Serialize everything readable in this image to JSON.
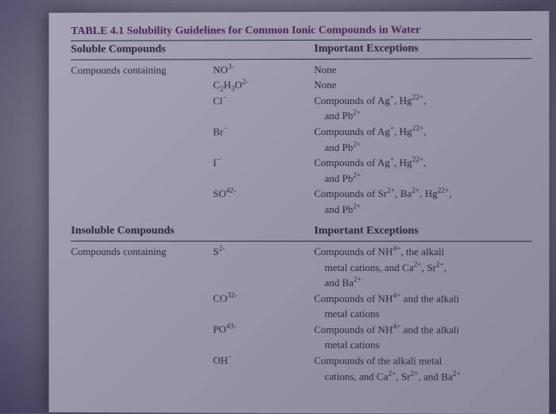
{
  "title": "TABLE 4.1  Solubility Guidelines for Common Ionic Compounds in Water",
  "section1": {
    "header_left": "Soluble Compounds",
    "header_right": "Important Exceptions",
    "prefix": "Compounds containing",
    "rows": [
      {
        "ion": "NO3-",
        "exc": "None"
      },
      {
        "ion": "C2H3O2-",
        "exc": "None"
      },
      {
        "ion": "Cl-",
        "exc": "Compounds of Ag+, Hg22+,",
        "exc2": "and Pb2+"
      },
      {
        "ion": "Br-",
        "exc": "Compounds of Ag+, Hg22+,",
        "exc2": "and Pb2+"
      },
      {
        "ion": "I-",
        "exc": "Compounds of Ag+, Hg22+,",
        "exc2": "and Pb2+"
      },
      {
        "ion": "SO42-",
        "exc": "Compounds of Sr2+, Ba2+, Hg22+,",
        "exc2": "and Pb2+"
      }
    ]
  },
  "section2": {
    "header_left": "Insoluble Compounds",
    "header_right": "Important Exceptions",
    "prefix": "Compounds containing",
    "rows": [
      {
        "ion": "S2-",
        "exc": "Compounds of NH4+, the alkali",
        "exc2": "metal cations, and Ca2+, Sr2+,",
        "exc3": "and Ba2+"
      },
      {
        "ion": "CO32-",
        "exc": "Compounds of NH4+ and the alkali",
        "exc2": "metal cations"
      },
      {
        "ion": "PO43-",
        "exc": "Compounds of NH4+ and the alkali",
        "exc2": "metal cations"
      },
      {
        "ion": "OH-",
        "exc": "Compounds of the alkali metal",
        "exc2": "cations, and Ca2+, Sr2+, and Ba2+"
      }
    ]
  }
}
